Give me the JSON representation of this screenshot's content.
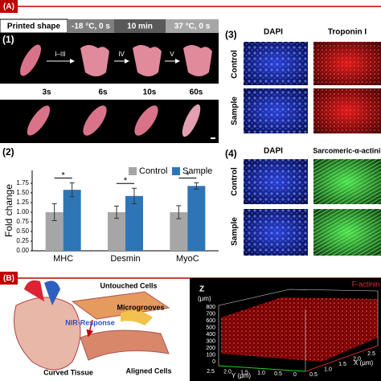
{
  "panel_a": {
    "label": "(A)",
    "header": [
      "Printed shape",
      "-18 °C, 0 s",
      "10 min",
      "37 °C, 0 s"
    ],
    "sub1": {
      "label": "(1)",
      "steps": [
        "I–III",
        "IV",
        "V"
      ],
      "times": [
        "3s",
        "6s",
        "10s",
        "60s"
      ]
    },
    "sub2": {
      "label": "(2)"
    },
    "sub3": {
      "label": "(3)",
      "columns": [
        "DAPI",
        "Troponin I"
      ],
      "rows": [
        "Control",
        "Sample"
      ]
    },
    "sub4": {
      "label": "(4)",
      "columns": [
        "DAPI",
        "Sarcomeric-α-actinin"
      ],
      "rows": [
        "Control",
        "Sample"
      ]
    }
  },
  "chart_data": {
    "type": "bar",
    "y_label": "Fold change",
    "categories": [
      "MHC",
      "Desmin",
      "MyoC"
    ],
    "series": [
      {
        "name": "Control",
        "color": "#a6a6a6",
        "values": [
          1.0,
          1.0,
          1.0
        ],
        "errors": [
          0.22,
          0.16,
          0.17
        ]
      },
      {
        "name": "Sample",
        "color": "#2e75b6",
        "values": [
          1.58,
          1.42,
          1.68
        ],
        "errors": [
          0.18,
          0.2,
          0.08
        ]
      }
    ],
    "significance": [
      "*",
      "*",
      "*"
    ],
    "ylim": [
      0,
      2
    ],
    "yticks": [
      {
        "value": 0,
        "label": "0.00"
      },
      {
        "value": 0.25,
        "label": "0.25"
      },
      {
        "value": 0.5,
        "label": "0.50"
      },
      {
        "value": 0.75,
        "label": "0.75"
      },
      {
        "value": 1,
        "label": "1.00"
      },
      {
        "value": 1.25,
        "label": "1.25"
      },
      {
        "value": 1.5,
        "label": "1.50"
      },
      {
        "value": 1.75,
        "label": "1.75"
      }
    ]
  },
  "panel_b": {
    "label": "(B)",
    "diagram": [
      "Untouched Cells",
      "Microgrooves",
      "NIR-Response",
      "Curved Tissue",
      "Aligned Cells"
    ],
    "confocal": {
      "stain": "F-actinin",
      "z_axis": "Z",
      "z_unit": "(μm)",
      "z_ticks": [
        "800",
        "700",
        "600",
        "500",
        "400",
        "300",
        "200",
        "100",
        "0"
      ],
      "y_axis": "Y (μm)",
      "y_ticks": [
        "2.5",
        "2.0",
        "1.5",
        "1.0",
        "0.5",
        "0"
      ],
      "x_axis": "X (μm)",
      "x_ticks": [
        "0.5",
        "1.0",
        "1.5",
        "2.0",
        "2.5"
      ]
    }
  }
}
